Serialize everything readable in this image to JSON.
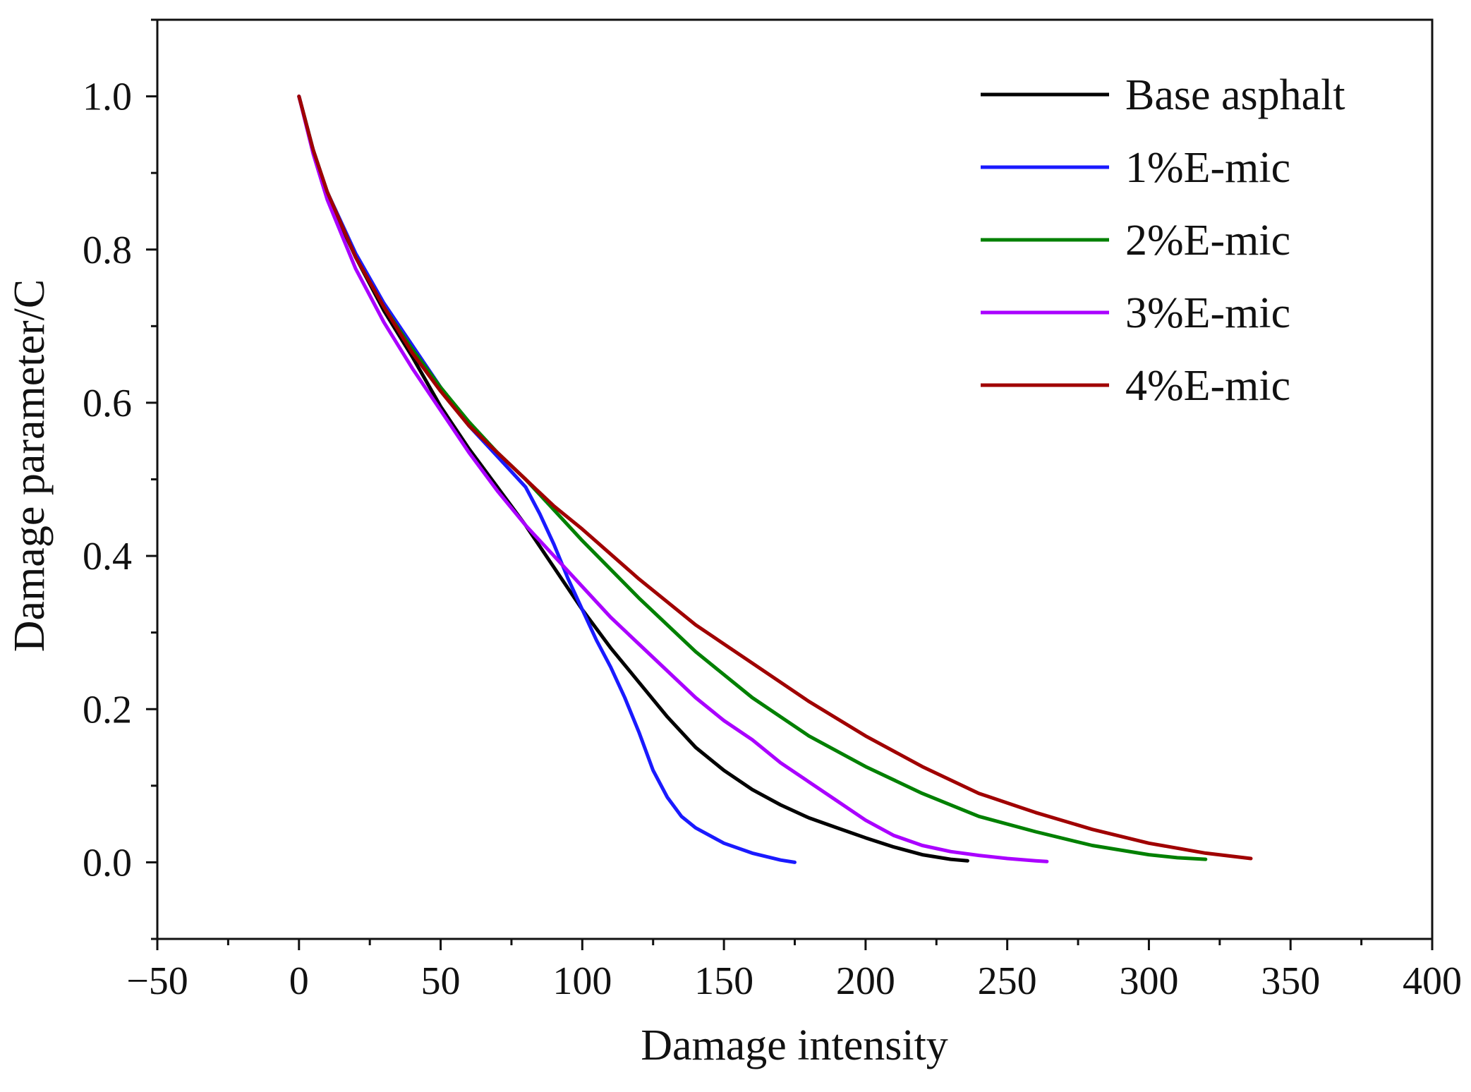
{
  "chart_data": {
    "type": "line",
    "title": "",
    "xlabel": "Damage intensity",
    "ylabel": "Damage parameter/C",
    "xlim": [
      -50,
      400
    ],
    "ylim": [
      -0.1,
      1.1
    ],
    "xticks": [
      -50,
      0,
      50,
      100,
      150,
      200,
      250,
      300,
      350,
      400
    ],
    "xtick_labels": [
      "−50",
      "0",
      "50",
      "100",
      "150",
      "200",
      "250",
      "300",
      "350",
      "400"
    ],
    "yticks": [
      0.0,
      0.2,
      0.4,
      0.6,
      0.8,
      1.0
    ],
    "ytick_labels": [
      "0.0",
      "0.2",
      "0.4",
      "0.6",
      "0.8",
      "1.0"
    ],
    "grid": false,
    "legend_position": "top-right",
    "series": [
      {
        "name": "Base asphalt",
        "color": "#000000",
        "x": [
          0,
          5,
          10,
          20,
          30,
          40,
          50,
          60,
          70,
          80,
          90,
          100,
          110,
          120,
          130,
          140,
          150,
          160,
          170,
          180,
          190,
          200,
          210,
          220,
          230,
          236
        ],
        "y": [
          1.0,
          0.93,
          0.87,
          0.79,
          0.72,
          0.66,
          0.595,
          0.54,
          0.49,
          0.44,
          0.385,
          0.33,
          0.28,
          0.235,
          0.19,
          0.15,
          0.12,
          0.095,
          0.075,
          0.058,
          0.045,
          0.032,
          0.02,
          0.01,
          0.004,
          0.002
        ]
      },
      {
        "name": "1%E-mic",
        "color": "#1a1aff",
        "x": [
          0,
          5,
          10,
          20,
          30,
          40,
          50,
          60,
          70,
          75,
          80,
          85,
          90,
          95,
          100,
          105,
          110,
          115,
          120,
          125,
          130,
          135,
          140,
          150,
          160,
          170,
          175
        ],
        "y": [
          1.0,
          0.93,
          0.875,
          0.795,
          0.73,
          0.675,
          0.62,
          0.57,
          0.53,
          0.51,
          0.49,
          0.455,
          0.415,
          0.37,
          0.33,
          0.29,
          0.255,
          0.215,
          0.17,
          0.12,
          0.085,
          0.06,
          0.045,
          0.025,
          0.012,
          0.003,
          0.0
        ]
      },
      {
        "name": "2%E-mic",
        "color": "#008000",
        "x": [
          0,
          5,
          10,
          20,
          30,
          40,
          50,
          60,
          70,
          80,
          90,
          100,
          120,
          140,
          160,
          180,
          200,
          220,
          240,
          260,
          280,
          300,
          310,
          320
        ],
        "y": [
          1.0,
          0.93,
          0.875,
          0.79,
          0.725,
          0.67,
          0.62,
          0.575,
          0.535,
          0.5,
          0.46,
          0.42,
          0.345,
          0.275,
          0.215,
          0.165,
          0.125,
          0.09,
          0.06,
          0.04,
          0.022,
          0.01,
          0.006,
          0.004
        ]
      },
      {
        "name": "3%E-mic",
        "color": "#aa00ff",
        "x": [
          0,
          5,
          10,
          20,
          30,
          40,
          50,
          60,
          70,
          80,
          90,
          100,
          110,
          120,
          130,
          140,
          150,
          160,
          170,
          180,
          190,
          200,
          210,
          220,
          230,
          240,
          250,
          260,
          264
        ],
        "y": [
          1.0,
          0.925,
          0.865,
          0.775,
          0.705,
          0.645,
          0.59,
          0.535,
          0.485,
          0.44,
          0.4,
          0.36,
          0.32,
          0.285,
          0.25,
          0.215,
          0.185,
          0.16,
          0.13,
          0.105,
          0.08,
          0.055,
          0.035,
          0.022,
          0.014,
          0.009,
          0.005,
          0.002,
          0.001
        ]
      },
      {
        "name": "4%E-mic",
        "color": "#a00000",
        "x": [
          0,
          5,
          10,
          20,
          30,
          40,
          50,
          60,
          70,
          80,
          90,
          100,
          120,
          140,
          160,
          180,
          200,
          220,
          240,
          260,
          280,
          300,
          320,
          336
        ],
        "y": [
          1.0,
          0.93,
          0.875,
          0.79,
          0.725,
          0.665,
          0.615,
          0.57,
          0.535,
          0.5,
          0.465,
          0.435,
          0.37,
          0.31,
          0.26,
          0.21,
          0.165,
          0.125,
          0.09,
          0.065,
          0.043,
          0.025,
          0.012,
          0.005
        ]
      }
    ]
  }
}
